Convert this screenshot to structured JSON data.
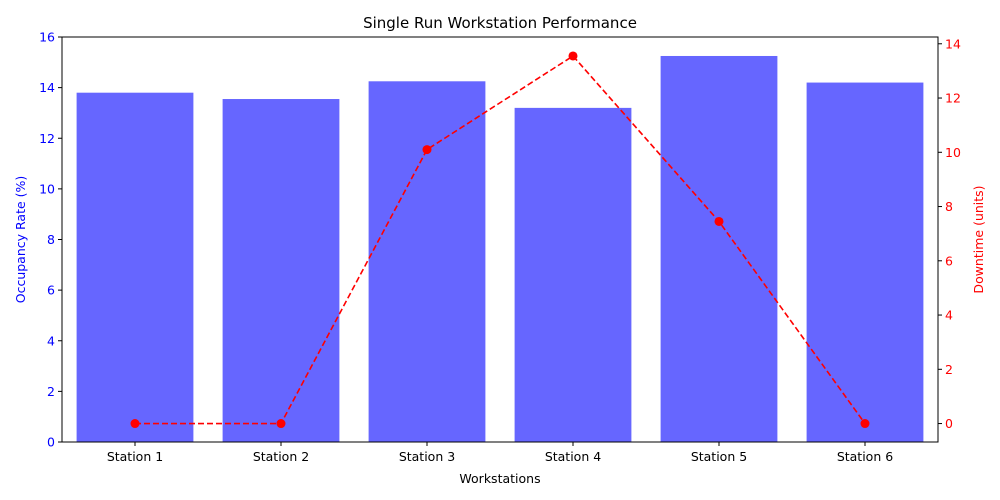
{
  "chart_data": {
    "type": "bar",
    "title": "Single Run Workstation Performance",
    "xlabel": "Workstations",
    "categories": [
      "Station 1",
      "Station 2",
      "Station 3",
      "Station 4",
      "Station 5",
      "Station 6"
    ],
    "series": [
      {
        "name": "Occupancy Rate",
        "type": "bar",
        "axis": "left",
        "color": "#6666ff",
        "values": [
          13.8,
          13.55,
          14.25,
          13.2,
          15.25,
          14.2
        ]
      },
      {
        "name": "Downtime",
        "type": "line",
        "axis": "right",
        "color": "#ff0000",
        "line_style": "dashed",
        "marker": "circle",
        "values": [
          0,
          0,
          10.1,
          13.55,
          7.45,
          0
        ]
      }
    ],
    "y_left": {
      "label": "Occupancy Rate (%)",
      "range": [
        0,
        16
      ],
      "ticks": [
        "0",
        "2",
        "4",
        "6",
        "8",
        "10",
        "12",
        "14",
        "16"
      ],
      "color": "#0000ff"
    },
    "y_right": {
      "label": "Downtime (units)",
      "range": [
        -0.68,
        14.25
      ],
      "ticks": [
        "0",
        "2",
        "4",
        "6",
        "8",
        "10",
        "12",
        "14"
      ],
      "color": "#ff0000"
    },
    "grid": false,
    "legend": "none"
  }
}
